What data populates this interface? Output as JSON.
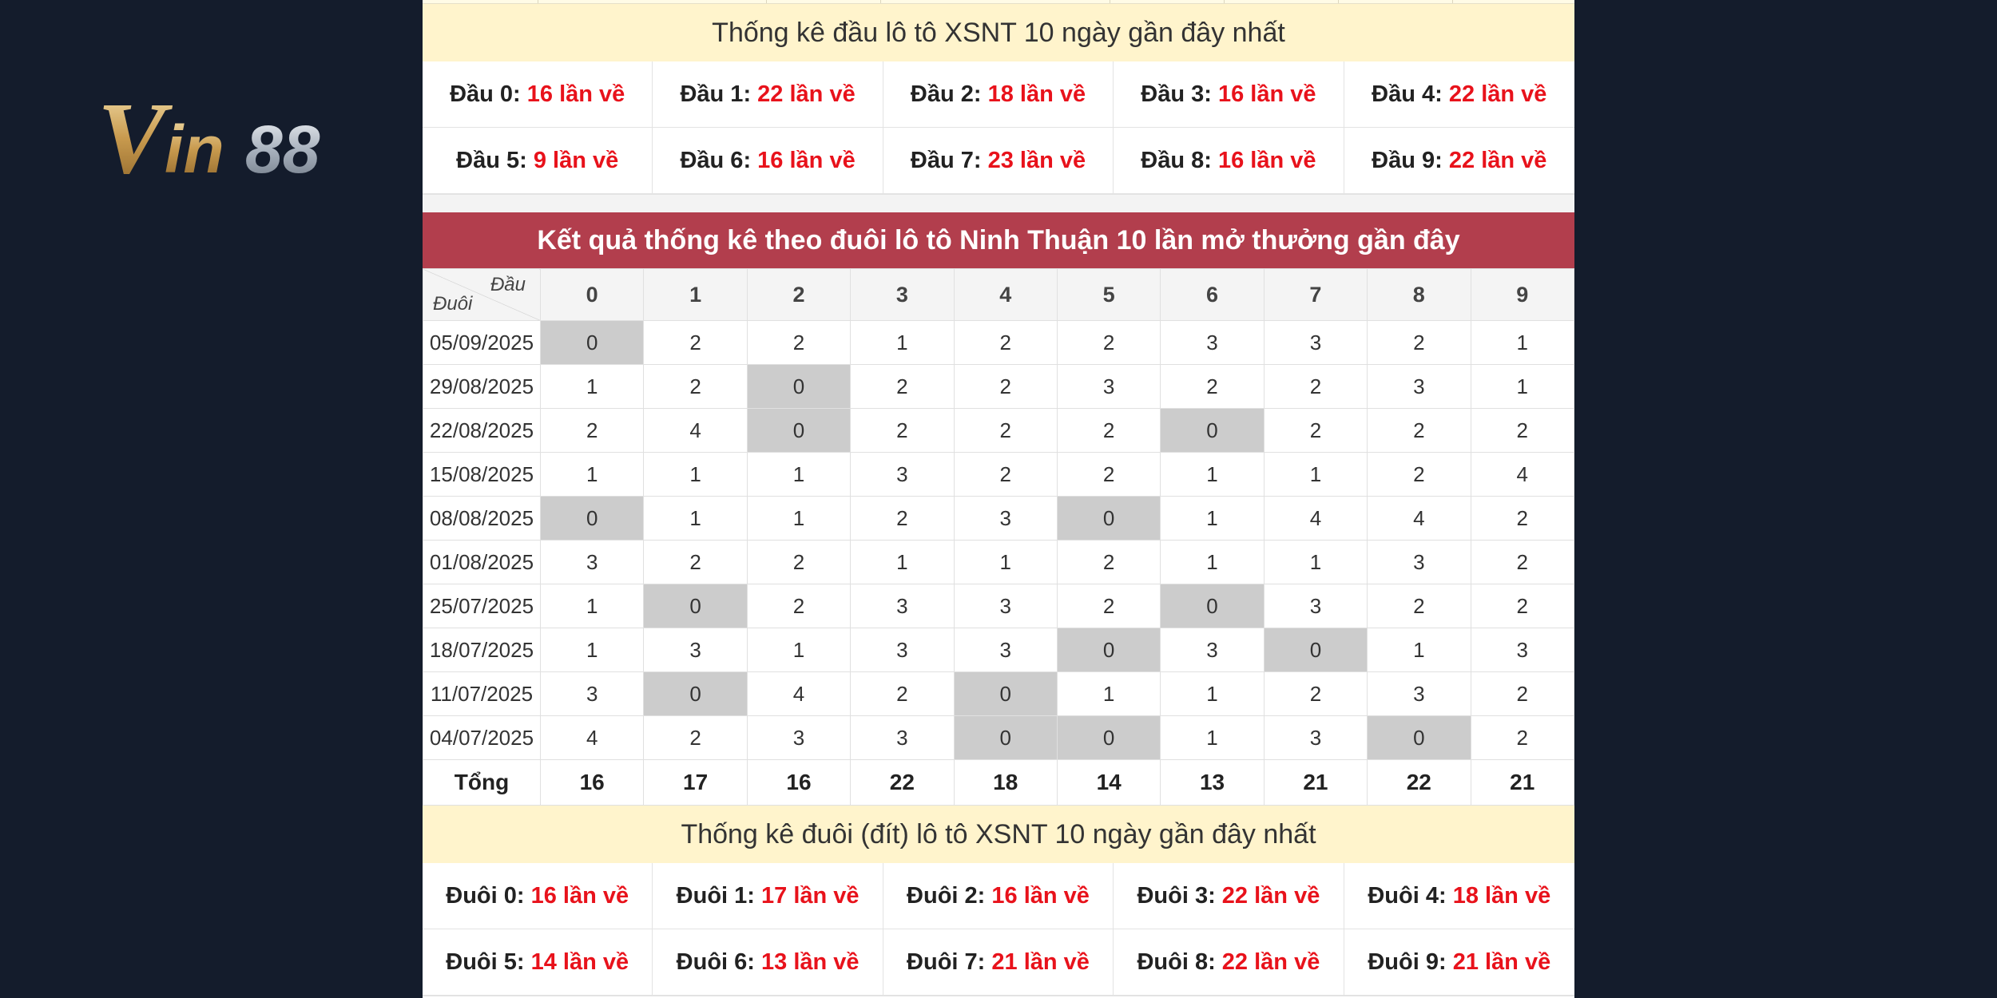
{
  "logo": {
    "text": "Vin88"
  },
  "dau_section": {
    "title": "Thống kê đầu lô tô XSNT 10 ngày gần đây nhất",
    "items": [
      {
        "label": "Đầu 0:",
        "count": "16 lần về"
      },
      {
        "label": "Đầu 1:",
        "count": "22 lần về"
      },
      {
        "label": "Đầu 2:",
        "count": "18 lần về"
      },
      {
        "label": "Đầu 3:",
        "count": "16 lần về"
      },
      {
        "label": "Đầu 4:",
        "count": "22 lần về"
      },
      {
        "label": "Đầu 5:",
        "count": "9 lần về"
      },
      {
        "label": "Đầu 6:",
        "count": "16 lần về"
      },
      {
        "label": "Đầu 7:",
        "count": "23 lần về"
      },
      {
        "label": "Đầu 8:",
        "count": "16 lần về"
      },
      {
        "label": "Đầu 9:",
        "count": "22 lần về"
      }
    ]
  },
  "duoi_table": {
    "title": "Kết quả thống kê theo đuôi lô tô Ninh Thuận 10 lần mở thưởng gần đây",
    "corner_top": "Đầu",
    "corner_bottom": "Đuôi",
    "columns": [
      "0",
      "1",
      "2",
      "3",
      "4",
      "5",
      "6",
      "7",
      "8",
      "9"
    ],
    "rows": [
      {
        "date": "05/09/2025",
        "values": [
          "0",
          "2",
          "2",
          "1",
          "2",
          "2",
          "3",
          "3",
          "2",
          "1"
        ]
      },
      {
        "date": "29/08/2025",
        "values": [
          "1",
          "2",
          "0",
          "2",
          "2",
          "3",
          "2",
          "2",
          "3",
          "1"
        ]
      },
      {
        "date": "22/08/2025",
        "values": [
          "2",
          "4",
          "0",
          "2",
          "2",
          "2",
          "0",
          "2",
          "2",
          "2"
        ]
      },
      {
        "date": "15/08/2025",
        "values": [
          "1",
          "1",
          "1",
          "3",
          "2",
          "2",
          "1",
          "1",
          "2",
          "4"
        ]
      },
      {
        "date": "08/08/2025",
        "values": [
          "0",
          "1",
          "1",
          "2",
          "3",
          "0",
          "1",
          "4",
          "4",
          "2"
        ]
      },
      {
        "date": "01/08/2025",
        "values": [
          "3",
          "2",
          "2",
          "1",
          "1",
          "2",
          "1",
          "1",
          "3",
          "2"
        ]
      },
      {
        "date": "25/07/2025",
        "values": [
          "1",
          "0",
          "2",
          "3",
          "3",
          "2",
          "0",
          "3",
          "2",
          "2"
        ]
      },
      {
        "date": "18/07/2025",
        "values": [
          "1",
          "3",
          "1",
          "3",
          "3",
          "0",
          "3",
          "0",
          "1",
          "3"
        ]
      },
      {
        "date": "11/07/2025",
        "values": [
          "3",
          "0",
          "4",
          "2",
          "0",
          "1",
          "1",
          "2",
          "3",
          "2"
        ]
      },
      {
        "date": "04/07/2025",
        "values": [
          "4",
          "2",
          "3",
          "3",
          "0",
          "0",
          "1",
          "3",
          "0",
          "2"
        ]
      }
    ],
    "total_label": "Tổng",
    "totals": [
      "16",
      "17",
      "16",
      "22",
      "18",
      "14",
      "13",
      "21",
      "22",
      "21"
    ]
  },
  "duoi_section": {
    "title": "Thống kê đuôi (đít) lô tô XSNT 10 ngày gần đây nhất",
    "items": [
      {
        "label": "Đuôi 0:",
        "count": "16 lần về"
      },
      {
        "label": "Đuôi 1:",
        "count": "17 lần về"
      },
      {
        "label": "Đuôi 2:",
        "count": "16 lần về"
      },
      {
        "label": "Đuôi 3:",
        "count": "22 lần về"
      },
      {
        "label": "Đuôi 4:",
        "count": "18 lần về"
      },
      {
        "label": "Đuôi 5:",
        "count": "14 lần về"
      },
      {
        "label": "Đuôi 6:",
        "count": "13 lần về"
      },
      {
        "label": "Đuôi 7:",
        "count": "21 lần về"
      },
      {
        "label": "Đuôi 8:",
        "count": "22 lần về"
      },
      {
        "label": "Đuôi 9:",
        "count": "21 lần về"
      }
    ]
  },
  "colors": {
    "background": "#141c2c",
    "header_red": "#b23e4d",
    "cream": "#fff4cc",
    "count_red": "#e8121b",
    "zero_cell": "#cccccc"
  }
}
